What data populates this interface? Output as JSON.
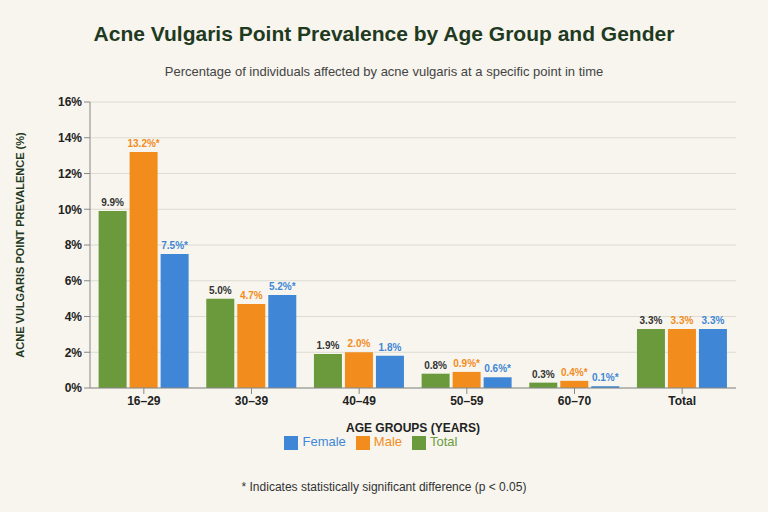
{
  "chart_data": {
    "type": "bar",
    "title": "Acne Vulgaris Point Prevalence by Age Group and Gender",
    "subtitle": "Percentage of individuals affected by acne vulgaris at a specific point in time",
    "x_label": "AGE GROUPS (YEARS)",
    "y_label": "ACNE VULGARIS POINT PREVALENCE (%)",
    "categories": [
      "16–29",
      "30–39",
      "40–49",
      "50–59",
      "60–70",
      "Total"
    ],
    "series": [
      {
        "name": "Total",
        "color": "#6a9a3c",
        "values": [
          9.9,
          5.0,
          1.9,
          0.8,
          0.3,
          3.3
        ],
        "value_labels": [
          "9.9%",
          "5.0%",
          "1.9%",
          "0.8%",
          "0.3%",
          "3.3%"
        ]
      },
      {
        "name": "Male",
        "color": "#f28c1c",
        "values": [
          13.2,
          4.7,
          2.0,
          0.9,
          0.4,
          3.3
        ],
        "value_labels": [
          "13.2%*",
          "4.7%",
          "2.0%",
          "0.9%*",
          "0.4%*",
          "3.3%"
        ]
      },
      {
        "name": "Female",
        "color": "#3f87d6",
        "values": [
          7.5,
          5.2,
          1.8,
          0.6,
          0.1,
          3.3
        ],
        "value_labels": [
          "7.5%*",
          "5.2%*",
          "1.8%",
          "0.6%*",
          "0.1%*",
          "3.3%"
        ]
      }
    ],
    "ylim": [
      0,
      16
    ],
    "yticks": [
      {
        "value": 0,
        "label": "0%"
      },
      {
        "value": 2,
        "label": "2%"
      },
      {
        "value": 4,
        "label": "4%"
      },
      {
        "value": 6,
        "label": "6%"
      },
      {
        "value": 8,
        "label": "8%"
      },
      {
        "value": 10,
        "label": "10%"
      },
      {
        "value": 12,
        "label": "12%"
      },
      {
        "value": 14,
        "label": "14%"
      },
      {
        "value": 16,
        "label": "16%"
      }
    ],
    "grid": true,
    "legend": "bottom",
    "data_labels": true,
    "annotations": [
      "* Indicates statistically significant difference (p < 0.05)"
    ]
  }
}
